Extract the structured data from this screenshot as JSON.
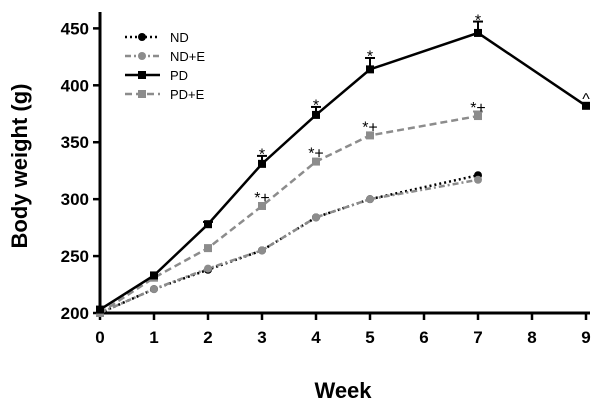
{
  "chart_data": {
    "type": "line",
    "title": "",
    "xlabel": "Week",
    "ylabel": "Body weight (g)",
    "xlim": [
      0,
      9
    ],
    "ylim": [
      200,
      460
    ],
    "x_ticks": [
      "0",
      "1",
      "2",
      "3",
      "4",
      "5",
      "6",
      "7",
      "8",
      "9"
    ],
    "y_ticks": [
      "200",
      "250",
      "300",
      "350",
      "400",
      "450"
    ],
    "legend_position": "top-left",
    "grid": false,
    "series": [
      {
        "name": "ND",
        "color": "#000000",
        "line_style": "dotted",
        "marker": "circle",
        "x": [
          0,
          1,
          2,
          3,
          4,
          5,
          7
        ],
        "y": [
          200,
          221,
          238,
          255,
          284,
          300,
          321
        ],
        "err": [
          0,
          0,
          0,
          0,
          0,
          0,
          0
        ]
      },
      {
        "name": "ND+E",
        "color": "#8c8c8c",
        "line_style": "dashdot",
        "marker": "circle",
        "x": [
          0,
          1,
          2,
          3,
          4,
          5,
          7
        ],
        "y": [
          200,
          221,
          239,
          255,
          284,
          300,
          317
        ],
        "err": [
          0,
          0,
          0,
          0,
          0,
          0,
          0
        ]
      },
      {
        "name": "PD",
        "color": "#000000",
        "line_style": "solid",
        "marker": "square",
        "x": [
          0,
          1,
          2,
          3,
          4,
          5,
          7,
          9
        ],
        "y": [
          203,
          233,
          278,
          331,
          374,
          414,
          446,
          382
        ],
        "err": [
          0,
          0,
          2,
          7,
          7,
          10,
          10,
          0
        ]
      },
      {
        "name": "PD+E",
        "color": "#8c8c8c",
        "line_style": "dashed",
        "marker": "square",
        "x": [
          0,
          1,
          2,
          3,
          4,
          5,
          7
        ],
        "y": [
          200,
          231,
          257,
          294,
          333,
          356,
          373
        ],
        "err": [
          0,
          0,
          0,
          0,
          0,
          0,
          4
        ]
      }
    ],
    "annotations": [
      {
        "x": 3,
        "y": 340,
        "text": "*"
      },
      {
        "x": 4,
        "y": 383,
        "text": "*"
      },
      {
        "x": 5,
        "y": 426,
        "text": "*"
      },
      {
        "x": 7,
        "y": 458,
        "text": "*"
      },
      {
        "x": 9,
        "y": 389,
        "text": "^"
      },
      {
        "x": 3,
        "y": 302,
        "text": "*+"
      },
      {
        "x": 4,
        "y": 341,
        "text": "*+"
      },
      {
        "x": 5,
        "y": 364,
        "text": "*+"
      },
      {
        "x": 7,
        "y": 381,
        "text": "*+"
      }
    ]
  }
}
